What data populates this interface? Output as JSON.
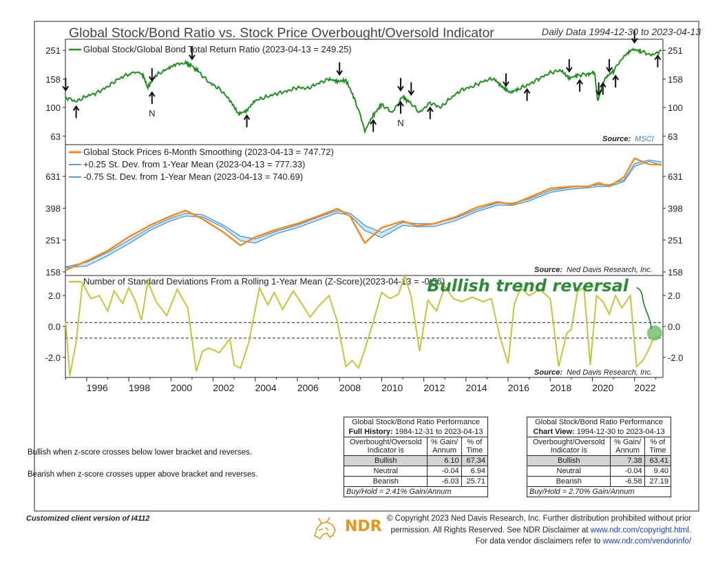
{
  "header": {
    "title": "Global Stock/Bond Ratio vs. Stock Price Overbought/Oversold Indicator",
    "date_range": "Daily Data 1994-12-30 to 2023-04-13"
  },
  "colors": {
    "ratio": "#1f8f1f",
    "stock": "#f08a24",
    "band": "#4a8fc6",
    "band_fill": "#cfe6f5",
    "zscore": "#c2c53a",
    "annotation": "#2e8b3a",
    "marker": "#5cb85c"
  },
  "panels": {
    "top": {
      "legend": "Global Stock/Global Bond Total Return Ratio (2023-04-13 = 249.25)",
      "source_label": "Source:",
      "source_name": "MSCI",
      "ticks": [
        "251",
        "158",
        "100",
        "63"
      ]
    },
    "middle": {
      "legend": [
        "Global Stock Prices 6-Month Smoothing (2023-04-13 = 747.72)",
        "+0.25 St. Dev. from 1-Year Mean (2023-04-13 = 777.33)",
        "-0.75 St. Dev. from 1-Year Mean (2023-04-13 = 740.69)"
      ],
      "source_label": "Source:",
      "source_name": "Ned Davis Research, Inc.",
      "ticks": [
        "631",
        "398",
        "251",
        "158"
      ]
    },
    "bottom": {
      "legend": "Number of Standard Deviations From a Rolling 1-Year Mean (Z-Score)(2023-04-13 = -0.56)",
      "source_label": "Source:",
      "source_name": "Ned Davis Research, Inc.",
      "ticks": [
        "2.0",
        "0.0",
        "-2.0"
      ],
      "annotation": "Bullish trend reversal"
    }
  },
  "x_axis": {
    "labels": [
      "1996",
      "1998",
      "2000",
      "2002",
      "2004",
      "2006",
      "2008",
      "2010",
      "2012",
      "2014",
      "2016",
      "2018",
      "2020",
      "2022"
    ]
  },
  "chart_data": [
    {
      "type": "line",
      "title": "Global Stock/Global Bond Total Return Ratio (2023-04-13 = 249.25)",
      "y_scale": "log",
      "ylim": [
        55,
        300
      ],
      "x": [
        1995.0,
        1995.5,
        1996.0,
        1996.5,
        1997.0,
        1997.5,
        1998.0,
        1998.6,
        1998.9,
        1999.3,
        1999.8,
        2000.2,
        2000.7,
        2001.0,
        2001.3,
        2001.8,
        2002.3,
        2002.8,
        2003.2,
        2003.6,
        2004.0,
        2004.5,
        2005.0,
        2005.5,
        2006.0,
        2006.5,
        2007.0,
        2007.5,
        2007.9,
        2008.3,
        2008.7,
        2009.2,
        2009.6,
        2010.0,
        2010.5,
        2011.0,
        2011.3,
        2011.8,
        2012.3,
        2012.8,
        2013.3,
        2013.8,
        2014.3,
        2014.8,
        2015.3,
        2015.7,
        2016.1,
        2016.5,
        2017.0,
        2017.5,
        2018.0,
        2018.5,
        2018.9,
        2019.3,
        2019.8,
        2020.1,
        2020.25,
        2020.6,
        2021.0,
        2021.5,
        2021.9,
        2022.3,
        2022.8,
        2023.28
      ],
      "series": [
        {
          "name": "Global Stock/Global Bond Total Return Ratio",
          "values": [
            118,
            110,
            120,
            127,
            140,
            158,
            172,
            175,
            138,
            168,
            185,
            200,
            205,
            195,
            178,
            150,
            135,
            112,
            90,
            95,
            112,
            118,
            125,
            130,
            138,
            136,
            148,
            158,
            152,
            155,
            115,
            68,
            88,
            105,
            92,
            118,
            110,
            92,
            108,
            100,
            117,
            133,
            140,
            152,
            160,
            140,
            127,
            135,
            145,
            160,
            175,
            182,
            160,
            168,
            172,
            175,
            110,
            160,
            180,
            228,
            255,
            248,
            232,
            249.25
          ]
        }
      ],
      "arrows": [
        {
          "x": 1995.0,
          "dir": "down"
        },
        {
          "x": 1995.5,
          "dir": "up"
        },
        {
          "x": 1999.1,
          "dir": "down"
        },
        {
          "x": 1999.1,
          "dir": "up",
          "label": "N"
        },
        {
          "x": 2001.0,
          "dir": "down"
        },
        {
          "x": 2003.6,
          "dir": "up"
        },
        {
          "x": 2008.0,
          "dir": "down"
        },
        {
          "x": 2009.6,
          "dir": "up"
        },
        {
          "x": 2010.9,
          "dir": "down"
        },
        {
          "x": 2010.9,
          "dir": "up",
          "label": "N"
        },
        {
          "x": 2011.4,
          "dir": "down"
        },
        {
          "x": 2012.3,
          "dir": "up"
        },
        {
          "x": 2015.9,
          "dir": "down"
        },
        {
          "x": 2016.9,
          "dir": "up"
        },
        {
          "x": 2018.9,
          "dir": "down"
        },
        {
          "x": 2019.4,
          "dir": "up"
        },
        {
          "x": 2020.3,
          "dir": "down"
        },
        {
          "x": 2020.5,
          "dir": "up"
        },
        {
          "x": 2020.8,
          "dir": "down"
        },
        {
          "x": 2021.1,
          "dir": "up"
        },
        {
          "x": 2022.0,
          "dir": "down"
        },
        {
          "x": 2023.1,
          "dir": "up"
        }
      ]
    },
    {
      "type": "line",
      "title": "Global Stock Prices 6-Month Smoothing",
      "y_scale": "log",
      "ylim": [
        150,
        1000
      ],
      "x": [
        1995.0,
        1996.0,
        1997.0,
        1998.0,
        1999.0,
        2000.0,
        2000.7,
        2001.5,
        2002.5,
        2003.3,
        2004.0,
        2005.0,
        2006.0,
        2007.0,
        2007.9,
        2008.5,
        2009.2,
        2010.0,
        2011.0,
        2011.7,
        2012.5,
        2013.5,
        2014.5,
        2015.5,
        2016.2,
        2017.0,
        2018.0,
        2019.0,
        2019.8,
        2020.3,
        2020.8,
        2021.5,
        2022.0,
        2022.7,
        2023.28
      ],
      "series": [
        {
          "name": "Global Stock Prices 6-Month Smoothing (2023-04-13 = 747.72)",
          "values": [
            162,
            185,
            215,
            262,
            310,
            355,
            385,
            340,
            280,
            232,
            262,
            292,
            318,
            355,
            395,
            355,
            240,
            300,
            330,
            308,
            318,
            350,
            402,
            436,
            420,
            465,
            530,
            545,
            545,
            575,
            545,
            625,
            820,
            750,
            747.72
          ]
        },
        {
          "name": "+0.25 St. Dev. from 1-Year Mean (2023-04-13 = 777.33)",
          "values": [
            170,
            182,
            210,
            250,
            300,
            345,
            370,
            362,
            310,
            265,
            255,
            285,
            312,
            350,
            385,
            370,
            310,
            280,
            325,
            318,
            318,
            345,
            390,
            430,
            428,
            455,
            515,
            540,
            548,
            560,
            560,
            600,
            760,
            800,
            777.33
          ]
        },
        {
          "name": "-0.75 St. Dev. from 1-Year Mean (2023-04-13 = 740.69)",
          "values": [
            168,
            172,
            200,
            238,
            288,
            332,
            355,
            350,
            300,
            248,
            240,
            275,
            300,
            336,
            372,
            358,
            288,
            260,
            310,
            304,
            305,
            332,
            378,
            416,
            414,
            442,
            500,
            525,
            535,
            545,
            545,
            585,
            730,
            785,
            740.69
          ]
        }
      ]
    },
    {
      "type": "line",
      "title": "Number of Standard Deviations From a Rolling 1-Year Mean (Z-Score)(2023-04-13 = -0.56)",
      "ylim": [
        -3.3,
        3.3
      ],
      "brackets": [
        0.25,
        -0.75
      ],
      "x": [
        1995.0,
        1995.2,
        1995.5,
        1995.8,
        1996.2,
        1996.6,
        1997.0,
        1997.3,
        1997.7,
        1998.0,
        1998.3,
        1998.6,
        1998.9,
        1999.3,
        1999.8,
        2000.3,
        2000.8,
        2001.2,
        2001.5,
        2001.8,
        2002.3,
        2002.8,
        2003.0,
        2003.3,
        2003.7,
        2004.2,
        2004.6,
        2004.9,
        2005.3,
        2005.8,
        2006.2,
        2006.6,
        2007.0,
        2007.5,
        2007.9,
        2008.3,
        2008.6,
        2008.9,
        2009.2,
        2009.6,
        2010.0,
        2010.4,
        2010.8,
        2011.1,
        2011.4,
        2011.8,
        2012.2,
        2012.6,
        2013.0,
        2013.4,
        2013.8,
        2014.3,
        2014.8,
        2015.2,
        2015.6,
        2016.0,
        2016.3,
        2016.6,
        2017.0,
        2017.5,
        2018.0,
        2018.4,
        2018.8,
        2019.0,
        2019.3,
        2019.6,
        2019.9,
        2020.2,
        2020.5,
        2020.8,
        2021.1,
        2021.4,
        2021.8,
        2022.1,
        2022.4,
        2022.6,
        2022.9,
        2023.28
      ],
      "series": [
        {
          "name": "Z-Score",
          "values": [
            0.3,
            -3.2,
            -1.0,
            2.8,
            1.8,
            2.0,
            1.0,
            2.3,
            1.5,
            2.5,
            1.7,
            0.4,
            2.9,
            1.6,
            0.7,
            2.4,
            1.2,
            -2.9,
            -1.6,
            -1.4,
            -1.7,
            -0.8,
            -2.5,
            -2.7,
            -1.0,
            2.5,
            1.4,
            2.2,
            1.1,
            2.3,
            1.5,
            0.6,
            1.3,
            2.0,
            0.3,
            -2.6,
            -2.2,
            -2.7,
            -1.5,
            0.3,
            2.2,
            1.8,
            2.1,
            3.3,
            1.9,
            -1.6,
            1.7,
            1.0,
            2.6,
            1.8,
            1.6,
            1.9,
            1.6,
            1.8,
            -0.6,
            -2.4,
            1.5,
            2.5,
            2.0,
            2.4,
            1.8,
            -2.6,
            -0.4,
            -0.2,
            2.3,
            2.5,
            -2.5,
            2.0,
            1.6,
            0.8,
            2.0,
            1.2,
            2.0,
            -2.6,
            -2.2,
            -1.7,
            -0.8,
            -0.56
          ]
        }
      ]
    }
  ],
  "tables": {
    "left": {
      "title": "Global Stock/Bond Ratio Performance",
      "subtitle_bold": "Full History:",
      "subtitle_range": "1984-12-31 to 2023-04-13",
      "col_headers": [
        "Overbought/Oversold Indicator is",
        "% Gain/ Annum",
        "% of Time"
      ],
      "rows": [
        [
          "Bullish",
          "6.10",
          "67.34"
        ],
        [
          "Neutral",
          "-0.04",
          "6.94"
        ],
        [
          "Bearish",
          "-6.03",
          "25.71"
        ]
      ],
      "footer": "Buy/Hold = 2.41% Gain/Annum"
    },
    "right": {
      "title": "Global Stock/Bond Ratio Performance",
      "subtitle_bold": "Chart View:",
      "subtitle_range": "1994-12-30 to 2023-04-13",
      "col_headers": [
        "Overbought/Oversold Indicator is",
        "% Gain/ Annum",
        "% of Time"
      ],
      "rows": [
        [
          "Bullish",
          "7.38",
          "63.41"
        ],
        [
          "Neutral",
          "-0.04",
          "9.40"
        ],
        [
          "Bearish",
          "-6.58",
          "27.19"
        ]
      ],
      "footer": "Buy/Hold = 2.70% Gain/Annum"
    }
  },
  "notes": {
    "bullish": "Bullish when z-score crosses below lower bracket and reverses.",
    "bearish": "Bearish when z-score crosses upper above bracket and reverses."
  },
  "footer": {
    "client": "Customized client version of I4112",
    "copyright_line1": "© Copyright 2023 Ned Davis Research, Inc. Further distribution prohibited without prior",
    "copyright_line2": "permission. All Rights Reserved. See NDR Disclaimer at",
    "copyright_link1": "www.ndr.com/copyright.html.",
    "copyright_line3": "For data vendor disclaimers refer to",
    "copyright_link2": "www.ndr.com/vendorinfo/",
    "logo": "NDR"
  }
}
